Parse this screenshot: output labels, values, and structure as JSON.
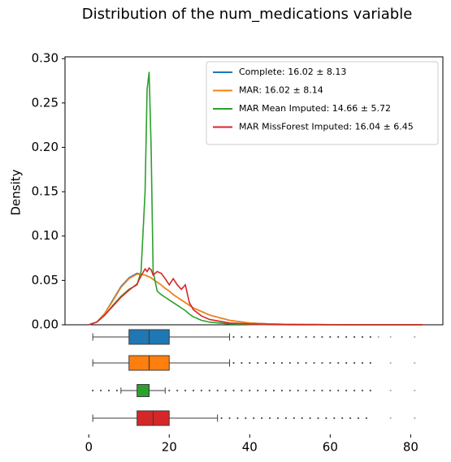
{
  "chart_data": {
    "type": "kde-box",
    "title": "Distribution of the num_medications variable",
    "y_label": "Density",
    "x": [
      0,
      2,
      4,
      6,
      8,
      10,
      12,
      13,
      14,
      14.5,
      15,
      15.5,
      16,
      17,
      18,
      19,
      20,
      21,
      22,
      23,
      24,
      25,
      26,
      28,
      30,
      35,
      40,
      45,
      50,
      60,
      70,
      83
    ],
    "xlim": [
      -5.9,
      88
    ],
    "xticks": [
      0,
      20,
      40,
      60,
      80
    ],
    "ylim": [
      0,
      0.302
    ],
    "yticks": [
      {
        "value": 0,
        "label": "0.00"
      },
      {
        "value": 0.05,
        "label": "0.05"
      },
      {
        "value": 0.1,
        "label": "0.10"
      },
      {
        "value": 0.15,
        "label": "0.15"
      },
      {
        "value": 0.2,
        "label": "0.20"
      },
      {
        "value": 0.25,
        "label": "0.25"
      },
      {
        "value": 0.3,
        "label": "0.30"
      }
    ],
    "legend": "upper right",
    "series": [
      {
        "name": "Complete: 16.02 ± 8.13",
        "color": "#1f77b4",
        "values": [
          0,
          0.003,
          0.013,
          0.028,
          0.043,
          0.053,
          0.058,
          0.057,
          0.056,
          0.055,
          0.054,
          0.053,
          0.051,
          0.048,
          0.045,
          0.041,
          0.038,
          0.034,
          0.031,
          0.028,
          0.025,
          0.022,
          0.019,
          0.015,
          0.011,
          0.005,
          0.002,
          0.001,
          0.0005,
          0.0002,
          0.0001,
          0
        ],
        "box": {
          "whislo": 1,
          "q1": 10,
          "med": 15,
          "q3": 20,
          "whishi": 35,
          "outliers": [
            36,
            38,
            40,
            42,
            44,
            46,
            48,
            50,
            52,
            54,
            56,
            58,
            60,
            62,
            64,
            66,
            68,
            70,
            72,
            75,
            81
          ]
        }
      },
      {
        "name": "MAR: 16.02 ± 8.14",
        "color": "#ff7f0e",
        "values": [
          0,
          0.003,
          0.013,
          0.027,
          0.042,
          0.052,
          0.057,
          0.057,
          0.056,
          0.055,
          0.054,
          0.053,
          0.051,
          0.048,
          0.045,
          0.041,
          0.038,
          0.034,
          0.031,
          0.028,
          0.025,
          0.022,
          0.019,
          0.015,
          0.011,
          0.005,
          0.002,
          0.001,
          0.0005,
          0.0002,
          0.0001,
          0
        ],
        "box": {
          "whislo": 1,
          "q1": 10,
          "med": 15,
          "q3": 20,
          "whishi": 35,
          "outliers": [
            36,
            38,
            40,
            42,
            44,
            46,
            48,
            50,
            52,
            54,
            56,
            58,
            60,
            62,
            64,
            66,
            68,
            70,
            75,
            81
          ]
        }
      },
      {
        "name": "MAR Mean Imputed: 14.66 ± 5.72",
        "color": "#2ca02c",
        "values": [
          0,
          0.003,
          0.011,
          0.022,
          0.032,
          0.04,
          0.045,
          0.06,
          0.15,
          0.265,
          0.285,
          0.2,
          0.06,
          0.038,
          0.034,
          0.031,
          0.028,
          0.025,
          0.022,
          0.019,
          0.016,
          0.012,
          0.009,
          0.005,
          0.003,
          0.001,
          0.0005,
          0.0002,
          0.0001,
          0,
          0,
          0
        ],
        "box": {
          "whislo": 8,
          "q1": 12,
          "med": 15,
          "q3": 15,
          "whishi": 19,
          "outliers": [
            1,
            3,
            5,
            7,
            20,
            22,
            24,
            26,
            28,
            30,
            32,
            34,
            36,
            38,
            40,
            42,
            44,
            46,
            48,
            50,
            52,
            54,
            56,
            58,
            60,
            62,
            64,
            66,
            68,
            70,
            75,
            81
          ]
        }
      },
      {
        "name": "MAR MissForest Imputed: 16.04 ± 6.45",
        "color": "#d62728",
        "values": [
          0,
          0.003,
          0.011,
          0.021,
          0.031,
          0.039,
          0.046,
          0.055,
          0.063,
          0.06,
          0.064,
          0.062,
          0.056,
          0.06,
          0.058,
          0.052,
          0.045,
          0.052,
          0.045,
          0.04,
          0.045,
          0.025,
          0.017,
          0.01,
          0.006,
          0.002,
          0.001,
          0.0005,
          0.0002,
          0,
          0,
          0
        ],
        "box": {
          "whislo": 1,
          "q1": 12,
          "med": 16,
          "q3": 20,
          "whishi": 32,
          "outliers": [
            33,
            35,
            37,
            39,
            41,
            43,
            45,
            47,
            49,
            51,
            53,
            55,
            57,
            59,
            61,
            63,
            65,
            67,
            69,
            75,
            81
          ]
        }
      }
    ]
  }
}
